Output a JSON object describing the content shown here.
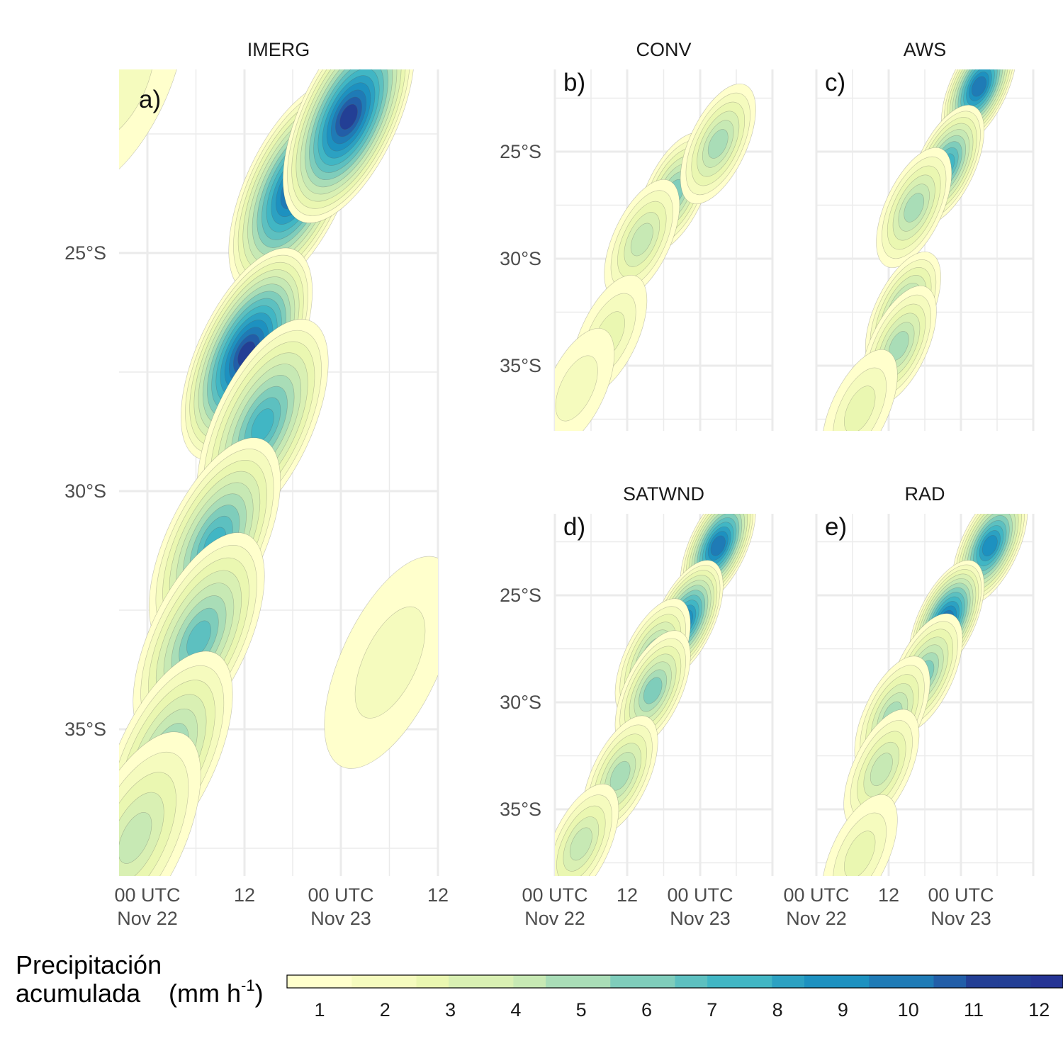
{
  "chart_data": {
    "type": "heatmap",
    "x_ticks": [
      "00 UTC\nNov 22",
      "12",
      "00 UTC\nNov 23",
      "12"
    ],
    "y_ticks": [
      "25°S",
      "30°S",
      "35°S"
    ],
    "xlim": [
      "Nov 22 00 UTC",
      "Nov 23 13 UTC"
    ],
    "ylim": [
      -38,
      -21
    ],
    "panels": [
      {
        "title": "IMERG",
        "tag": "a)",
        "x_ticks": [
          "00 UTC\nNov 22",
          "12",
          "00 UTC\nNov 23",
          "12"
        ],
        "blobs": [
          {
            "x": 0.0,
            "y": -21.3,
            "value": 1
          },
          {
            "x": 0.55,
            "y": -23.5,
            "value": 10
          },
          {
            "x": 0.72,
            "y": -22.0,
            "value": 11
          },
          {
            "x": 0.4,
            "y": -27.0,
            "value": 11
          },
          {
            "x": 0.45,
            "y": -28.5,
            "value": 7
          },
          {
            "x": 0.3,
            "y": -31.0,
            "value": 7
          },
          {
            "x": 0.25,
            "y": -33.0,
            "value": 6
          },
          {
            "x": 0.15,
            "y": -35.5,
            "value": 5
          },
          {
            "x": 0.05,
            "y": -37.2,
            "value": 3
          },
          {
            "x": 0.85,
            "y": -33.5,
            "value": 1
          }
        ]
      },
      {
        "title": "CONV",
        "tag": "b)",
        "x_ticks": [
          "00 UTC\nNov 22",
          "12",
          "00 UTC\nNov 23",
          ""
        ],
        "blobs": [
          {
            "x": 0.55,
            "y": -26.8,
            "value": 5
          },
          {
            "x": 0.75,
            "y": -24.5,
            "value": 4
          },
          {
            "x": 0.4,
            "y": -29.0,
            "value": 3
          },
          {
            "x": 0.25,
            "y": -33.5,
            "value": 2
          },
          {
            "x": 0.1,
            "y": -36.0,
            "value": 1
          }
        ]
      },
      {
        "title": "AWS",
        "tag": "c)",
        "x_ticks": [
          "00 UTC\nNov 22",
          "12",
          "00 UTC\nNov 23",
          ""
        ],
        "blobs": [
          {
            "x": 0.75,
            "y": -21.8,
            "value": 9
          },
          {
            "x": 0.6,
            "y": -25.5,
            "value": 7
          },
          {
            "x": 0.45,
            "y": -27.5,
            "value": 4
          },
          {
            "x": 0.4,
            "y": -32.4,
            "value": 5
          },
          {
            "x": 0.38,
            "y": -34.0,
            "value": 4
          },
          {
            "x": 0.2,
            "y": -37.0,
            "value": 2
          }
        ]
      },
      {
        "title": "SATWND",
        "tag": "d)",
        "x_ticks": [
          "00 UTC\nNov 22",
          "12",
          "00 UTC\nNov 23",
          ""
        ],
        "blobs": [
          {
            "x": 0.75,
            "y": -22.5,
            "value": 9
          },
          {
            "x": 0.6,
            "y": -26.0,
            "value": 8
          },
          {
            "x": 0.45,
            "y": -27.8,
            "value": 5
          },
          {
            "x": 0.45,
            "y": -29.3,
            "value": 5
          },
          {
            "x": 0.3,
            "y": -33.3,
            "value": 4
          },
          {
            "x": 0.12,
            "y": -36.5,
            "value": 3
          }
        ]
      },
      {
        "title": "RAD",
        "tag": "e)",
        "x_ticks": [
          "00 UTC\nNov 22",
          "12",
          "00 UTC\nNov 23",
          ""
        ],
        "blobs": [
          {
            "x": 0.8,
            "y": -22.5,
            "value": 8
          },
          {
            "x": 0.6,
            "y": -26.0,
            "value": 9
          },
          {
            "x": 0.5,
            "y": -28.5,
            "value": 5
          },
          {
            "x": 0.35,
            "y": -30.5,
            "value": 4
          },
          {
            "x": 0.3,
            "y": -33.0,
            "value": 3
          },
          {
            "x": 0.2,
            "y": -37.0,
            "value": 2
          }
        ]
      }
    ],
    "colorbar": {
      "title_line1": "Precipitación",
      "title_line2": "acumulada",
      "units_main": "(mm h",
      "units_sup": "-1",
      "units_end": ")",
      "ticks": [
        "1",
        "2",
        "3",
        "4",
        "5",
        "6",
        "7",
        "8",
        "9",
        "10",
        "11",
        "12"
      ],
      "colors": [
        "#ffffcc",
        "#f5fbbe",
        "#eaf7b1",
        "#d9f0b3",
        "#c7e9b4",
        "#a9ddb7",
        "#7fcdbb",
        "#5dc0c0",
        "#41b6c4",
        "#2ca1c2",
        "#1d91c0",
        "#1f7bb6",
        "#225ea8",
        "#233f95",
        "#253494"
      ]
    }
  }
}
